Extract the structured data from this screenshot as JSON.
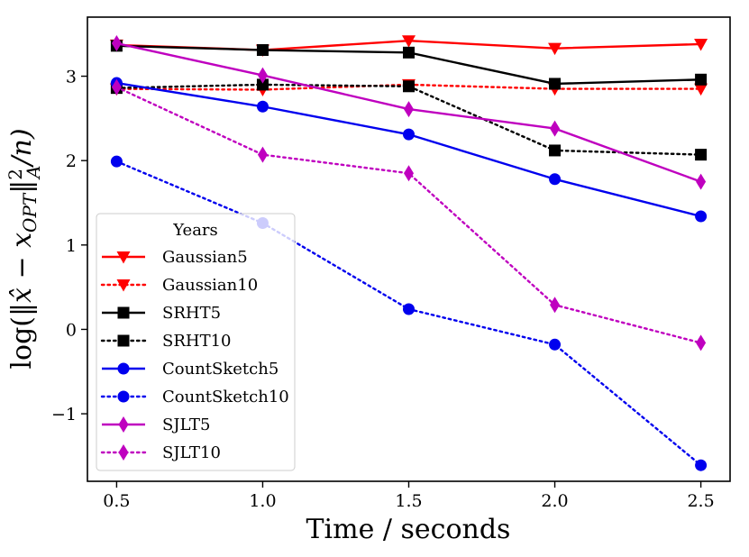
{
  "chart_data": {
    "type": "line",
    "title": "",
    "xlabel": "Time / seconds",
    "ylabel": "log(||x̂ − x_OPT||²_A / n)",
    "ylabel_main": "log(‖",
    "ylabel_hat": "x̂",
    "ylabel_minus": " − x",
    "ylabel_sub": "OPT",
    "ylabel_norm": "‖",
    "ylabel_sup": "2",
    "ylabel_subA": "A",
    "ylabel_end": "/n)",
    "x": [
      0.5,
      1.0,
      1.5,
      2.0,
      2.5
    ],
    "xlim": [
      0.4,
      2.6
    ],
    "ylim": [
      -1.8,
      3.7
    ],
    "xticks": [
      "0.5",
      "1.0",
      "1.5",
      "2.0",
      "2.5"
    ],
    "yticks": [
      "−1",
      "0",
      "1",
      "2",
      "3"
    ],
    "ytick_values": [
      -1,
      0,
      1,
      2,
      3
    ],
    "grid": false,
    "legend_title": "Years",
    "legend_position": "lower-left",
    "series": [
      {
        "name": "Gaussian5",
        "values": [
          3.37,
          3.31,
          3.42,
          3.33,
          3.38
        ],
        "color": "#ff0000",
        "dash": "solid",
        "marker": "triangle-down"
      },
      {
        "name": "Gaussian10",
        "values": [
          2.85,
          2.84,
          2.9,
          2.85,
          2.85
        ],
        "color": "#ff0000",
        "dash": "dotted",
        "marker": "triangle-down"
      },
      {
        "name": "SRHT5",
        "values": [
          3.36,
          3.31,
          3.28,
          2.91,
          2.96
        ],
        "color": "#000000",
        "dash": "solid",
        "marker": "square"
      },
      {
        "name": "SRHT10",
        "values": [
          2.86,
          2.9,
          2.88,
          2.12,
          2.07
        ],
        "color": "#000000",
        "dash": "dotted",
        "marker": "square"
      },
      {
        "name": "CountSketch5",
        "values": [
          2.92,
          2.64,
          2.31,
          1.78,
          1.34
        ],
        "color": "#0000ee",
        "dash": "solid",
        "marker": "circle"
      },
      {
        "name": "CountSketch10",
        "values": [
          1.99,
          1.26,
          0.24,
          -0.18,
          -1.61
        ],
        "color": "#0000ee",
        "dash": "dotted",
        "marker": "circle"
      },
      {
        "name": "SJLT5",
        "values": [
          3.39,
          3.01,
          2.61,
          2.38,
          1.75
        ],
        "color": "#bf00bf",
        "dash": "solid",
        "marker": "diamond"
      },
      {
        "name": "SJLT10",
        "values": [
          2.87,
          2.07,
          1.85,
          0.29,
          -0.16
        ],
        "color": "#bf00bf",
        "dash": "dotted",
        "marker": "diamond"
      }
    ]
  }
}
